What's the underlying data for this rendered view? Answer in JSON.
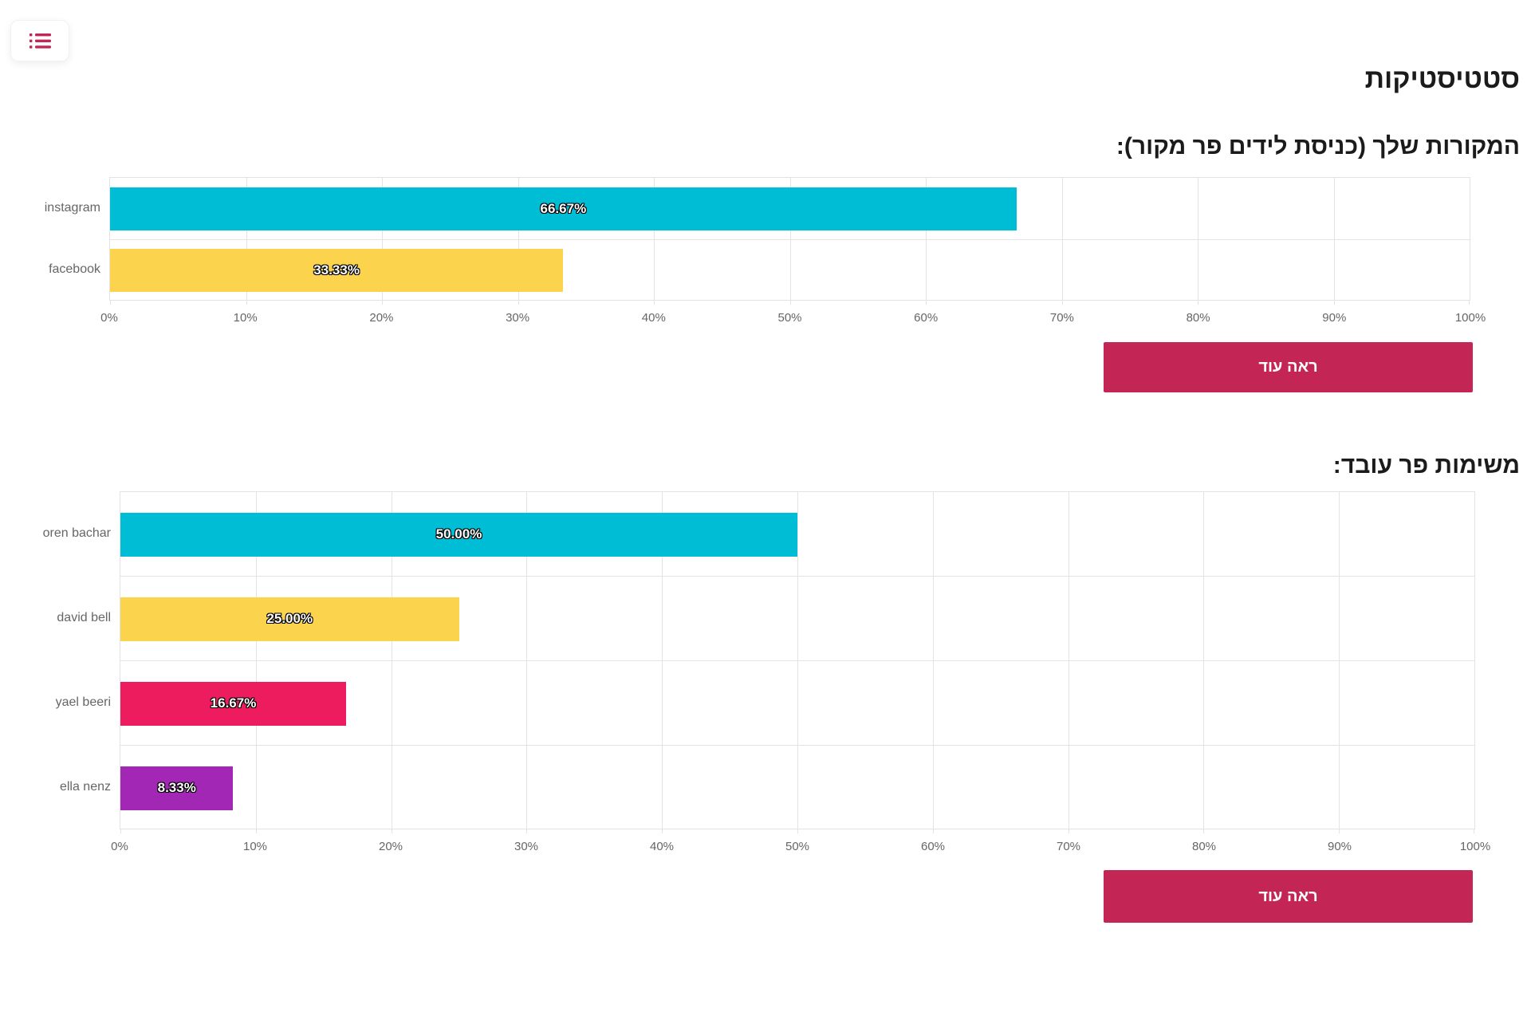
{
  "header": {
    "title": "סטטיסטיקות"
  },
  "menu": {
    "icon": "list-icon"
  },
  "ui": {
    "see_more_label": "ראה עוד"
  },
  "colors": {
    "accent": "#C32655",
    "grid": "#E3E3E3",
    "axis_text": "#666666",
    "heading_text": "#1B1B1B"
  },
  "chart_data": [
    {
      "type": "bar",
      "orientation": "horizontal",
      "title": "המקורות שלך (כניסת לידים פר מקור):",
      "categories": [
        "instagram",
        "facebook"
      ],
      "values": [
        66.67,
        33.33
      ],
      "value_labels": [
        "66.67%",
        "33.33%"
      ],
      "bar_colors": [
        "#00BDD6",
        "#FBD34D"
      ],
      "xlim": [
        0,
        100
      ],
      "x_ticks": [
        "0%",
        "10%",
        "20%",
        "30%",
        "40%",
        "50%",
        "60%",
        "70%",
        "80%",
        "90%",
        "100%"
      ],
      "grid": true,
      "legend": "none",
      "button_label": "ראה עוד"
    },
    {
      "type": "bar",
      "orientation": "horizontal",
      "title": "משימות פר עובד:",
      "categories": [
        "oren bachar",
        "david bell",
        "yael beeri",
        "ella nenz"
      ],
      "values": [
        50.0,
        25.0,
        16.67,
        8.33
      ],
      "value_labels": [
        "50.00%",
        "25.00%",
        "16.67%",
        "8.33%"
      ],
      "bar_colors": [
        "#00BDD6",
        "#FBD34D",
        "#EC1C5F",
        "#A227B5"
      ],
      "xlim": [
        0,
        100
      ],
      "x_ticks": [
        "0%",
        "10%",
        "20%",
        "30%",
        "40%",
        "50%",
        "60%",
        "70%",
        "80%",
        "90%",
        "100%"
      ],
      "grid": true,
      "legend": "none",
      "button_label": "ראה עוד"
    }
  ]
}
